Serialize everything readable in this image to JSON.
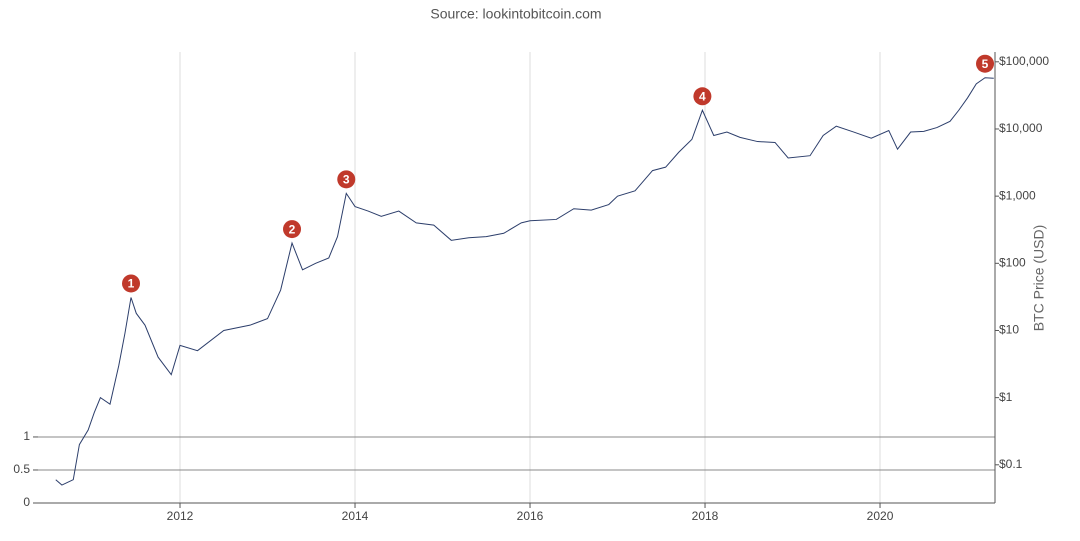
{
  "chart_data": {
    "type": "line",
    "title": "Source: lookintobitcoin.com",
    "y2_label": "BTC Price (USD)",
    "x": [
      2010.58,
      2010.65,
      2010.78,
      2010.85,
      2010.95,
      2011.02,
      2011.09,
      2011.2,
      2011.3,
      2011.37,
      2011.44,
      2011.5,
      2011.6,
      2011.75,
      2011.9,
      2012.0,
      2012.2,
      2012.5,
      2012.8,
      2013.0,
      2013.15,
      2013.28,
      2013.4,
      2013.55,
      2013.7,
      2013.8,
      2013.9,
      2014.0,
      2014.15,
      2014.3,
      2014.5,
      2014.7,
      2014.9,
      2015.1,
      2015.3,
      2015.5,
      2015.7,
      2015.9,
      2016.0,
      2016.3,
      2016.5,
      2016.7,
      2016.9,
      2017.0,
      2017.2,
      2017.4,
      2017.55,
      2017.7,
      2017.85,
      2017.97,
      2018.1,
      2018.25,
      2018.4,
      2018.6,
      2018.8,
      2018.95,
      2019.2,
      2019.35,
      2019.5,
      2019.7,
      2019.9,
      2020.1,
      2020.2,
      2020.35,
      2020.5,
      2020.65,
      2020.8,
      2020.9,
      2021.0,
      2021.1,
      2021.2,
      2021.3
    ],
    "series": [
      {
        "name": "BTC Price",
        "color": "#2c3e6b",
        "axis": "y2",
        "values": [
          0.06,
          0.05,
          0.06,
          0.2,
          0.33,
          0.6,
          1.0,
          0.8,
          3,
          9,
          31,
          18,
          12,
          4,
          2.2,
          6,
          5,
          10,
          12,
          15,
          40,
          200,
          80,
          100,
          120,
          250,
          1100,
          700,
          600,
          500,
          600,
          400,
          370,
          220,
          240,
          250,
          280,
          400,
          430,
          450,
          650,
          620,
          750,
          1000,
          1200,
          2400,
          2700,
          4500,
          7000,
          19000,
          8000,
          9000,
          7500,
          6500,
          6300,
          3700,
          4000,
          8000,
          11000,
          9000,
          7300,
          9500,
          5000,
          9000,
          9200,
          10500,
          13000,
          19000,
          29000,
          47000,
          58000,
          57000
        ]
      }
    ],
    "annotations": [
      {
        "text": "1",
        "x": 2011.44,
        "y": 31
      },
      {
        "text": "2",
        "x": 2013.28,
        "y": 200
      },
      {
        "text": "3",
        "x": 2013.9,
        "y": 1100
      },
      {
        "text": "4",
        "x": 2017.97,
        "y": 19000
      },
      {
        "text": "5",
        "x": 2021.2,
        "y": 58000
      }
    ],
    "xlim": [
      2010.377,
      2021.314
    ],
    "xticks": [
      2012,
      2014,
      2016,
      2018,
      2020
    ],
    "ylim": [
      0,
      6.83
    ],
    "yticks": [
      0,
      0.5,
      1
    ],
    "y2lim": [
      0.027,
      140000
    ],
    "y2ticks": [
      {
        "value": 0.1,
        "label": "$0.1"
      },
      {
        "value": 1,
        "label": "$1"
      },
      {
        "value": 10,
        "label": "$10"
      },
      {
        "value": 100,
        "label": "$100"
      },
      {
        "value": 1000,
        "label": "$1,000"
      },
      {
        "value": 10000,
        "label": "$10,000"
      },
      {
        "value": 100000,
        "label": "$100,000"
      }
    ],
    "y2_log": true,
    "grid": true,
    "annotation_color": "#c0392b"
  }
}
